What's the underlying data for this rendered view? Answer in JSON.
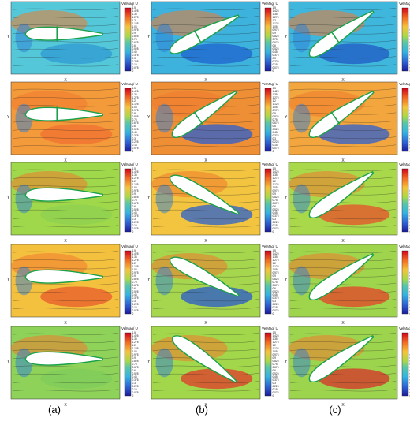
{
  "figure": {
    "column_labels": [
      "(a)",
      "(b)",
      "(c)"
    ],
    "colorbar_title": "VelMag/ U",
    "axis_x_label": "X",
    "axis_y_label": "Y",
    "colorbar_ticks": [
      "1.5",
      "1.425",
      "1.35",
      "1.275",
      "1.2",
      "1.125",
      "1.05",
      "0.975",
      "0.9",
      "0.825",
      "0.75",
      "0.675",
      "0.6",
      "0.525",
      "0.45",
      "0.375",
      "0.3",
      "0.225",
      "0.15",
      "0.075",
      "0"
    ]
  },
  "panels": [
    {
      "id": "a1",
      "col": 0,
      "row": 0,
      "angle": 0,
      "style": "gap",
      "bg": "#54c7d8",
      "wake": "#2f9ad3"
    },
    {
      "id": "b1",
      "col": 1,
      "row": 0,
      "angle": -28,
      "style": "gap",
      "bg": "#3db2dd",
      "wake": "#1f63cc"
    },
    {
      "id": "c1",
      "col": 2,
      "row": 0,
      "angle": -35,
      "style": "gap",
      "bg": "#3fb6dc",
      "wake": "#2059c6"
    },
    {
      "id": "a2",
      "col": 0,
      "row": 1,
      "angle": 0,
      "style": "flap",
      "bg": "#f39a3a",
      "wake": "#f07032"
    },
    {
      "id": "b2",
      "col": 1,
      "row": 1,
      "angle": -35,
      "style": "flap",
      "bg": "#ef8f35",
      "wake": "#2a5fd0"
    },
    {
      "id": "c2",
      "col": 2,
      "row": 1,
      "angle": -35,
      "style": "flap",
      "bg": "#f2a63d",
      "wake": "#2e5fd0"
    },
    {
      "id": "a3",
      "col": 0,
      "row": 2,
      "angle": 0,
      "style": "plain",
      "bg": "#9fd84a",
      "wake": "#8fd050"
    },
    {
      "id": "b3",
      "col": 1,
      "row": 2,
      "angle": 28,
      "style": "plain",
      "bg": "#f2c43f",
      "wake": "#2a60d2"
    },
    {
      "id": "c3",
      "col": 2,
      "row": 2,
      "angle": -35,
      "style": "plain",
      "bg": "#a9d84b",
      "wake": "#e8502a"
    },
    {
      "id": "a4",
      "col": 0,
      "row": 3,
      "angle": 0,
      "style": "plain",
      "bg": "#f4c13f",
      "wake": "#e85a2c"
    },
    {
      "id": "b4",
      "col": 1,
      "row": 3,
      "angle": 28,
      "style": "plain",
      "bg": "#a6d64e",
      "wake": "#2a58cc"
    },
    {
      "id": "c4",
      "col": 2,
      "row": 3,
      "angle": -35,
      "style": "plain",
      "bg": "#9fd54d",
      "wake": "#e6402a"
    },
    {
      "id": "a5",
      "col": 0,
      "row": 4,
      "angle": 0,
      "style": "plain",
      "bg": "#8ed25a",
      "wake": "#7fcc5c"
    },
    {
      "id": "b5",
      "col": 1,
      "row": 4,
      "angle": 35,
      "style": "plain",
      "bg": "#a2d64b",
      "wake": "#e03a2a"
    },
    {
      "id": "c5",
      "col": 2,
      "row": 4,
      "angle": -35,
      "style": "plain",
      "bg": "#9dd44e",
      "wake": "#d8302a"
    }
  ]
}
